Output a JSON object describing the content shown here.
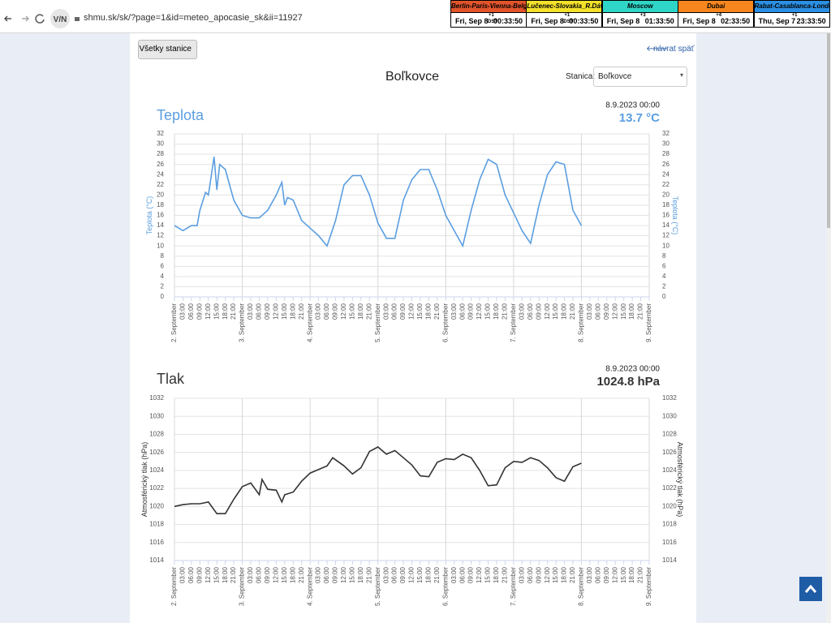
{
  "browser": {
    "url": "shmu.sk/sk/?page=1&id=meteo_apocasie_sk&ii=11927"
  },
  "clocks": [
    {
      "zone": "Berlin-Paris-Vienna-Belgrade",
      "date": "Fri, Sep 8",
      "offset": "+1",
      "dst": "DST",
      "time": "00:33:50",
      "color": "#e2542b"
    },
    {
      "zone": "Lučenec-Slovakia_R.Dávid",
      "date": "Fri, Sep 8",
      "offset": "+1",
      "dst": "DST",
      "time": "00:33:50",
      "color": "#f3e12b"
    },
    {
      "zone": "Moscow",
      "date": "Fri, Sep 8",
      "offset": "+3",
      "time": "01:33:50",
      "color": "#2fd6c8"
    },
    {
      "zone": "Dubai",
      "date": "Fri, Sep 8",
      "offset": "+4",
      "time": "02:33:50",
      "color": "#f7861e"
    },
    {
      "zone": "Rabat-Casablanca-London",
      "date": "Thu, Sep 7",
      "offset": "+1",
      "time": "23:33:50",
      "color": "#2b8fe3"
    }
  ],
  "page": {
    "all_stations_button": "Všetky stanice",
    "back_link": "návrat späť",
    "station_title": "Boľkovce",
    "station_label": "Stanica:",
    "station_select": "Boľkovce"
  },
  "chart_data": [
    {
      "type": "line",
      "title": "Teplota",
      "reading_time": "8.9.2023 00:00",
      "reading": "13.7 °C",
      "y_label": "Teplota (°C)",
      "color": "#5b9ee0",
      "title_color": "#5b9ee0",
      "xlim": [
        0,
        168
      ],
      "ylim": [
        0,
        32
      ],
      "yticks": [
        0,
        2,
        4,
        6,
        8,
        10,
        12,
        14,
        16,
        18,
        20,
        22,
        24,
        26,
        28,
        30,
        32
      ],
      "xticks": [
        {
          "value": 0,
          "label": "2. September"
        },
        {
          "value": 3,
          "label": "03:00"
        },
        {
          "value": 6,
          "label": "06:00"
        },
        {
          "value": 9,
          "label": "09:00"
        },
        {
          "value": 12,
          "label": "12:00"
        },
        {
          "value": 15,
          "label": "15:00"
        },
        {
          "value": 18,
          "label": "18:00"
        },
        {
          "value": 21,
          "label": "21:00"
        },
        {
          "value": 24,
          "label": "3. September"
        },
        {
          "value": 27,
          "label": "03:00"
        },
        {
          "value": 30,
          "label": "06:00"
        },
        {
          "value": 33,
          "label": "09:00"
        },
        {
          "value": 36,
          "label": "12:00"
        },
        {
          "value": 39,
          "label": "15:00"
        },
        {
          "value": 42,
          "label": "18:00"
        },
        {
          "value": 45,
          "label": "21:00"
        },
        {
          "value": 48,
          "label": "4. September"
        },
        {
          "value": 51,
          "label": "03:00"
        },
        {
          "value": 54,
          "label": "06:00"
        },
        {
          "value": 57,
          "label": "09:00"
        },
        {
          "value": 60,
          "label": "12:00"
        },
        {
          "value": 63,
          "label": "15:00"
        },
        {
          "value": 66,
          "label": "18:00"
        },
        {
          "value": 69,
          "label": "21:00"
        },
        {
          "value": 72,
          "label": "5. September"
        },
        {
          "value": 75,
          "label": "03:00"
        },
        {
          "value": 78,
          "label": "06:00"
        },
        {
          "value": 81,
          "label": "09:00"
        },
        {
          "value": 84,
          "label": "12:00"
        },
        {
          "value": 87,
          "label": "15:00"
        },
        {
          "value": 90,
          "label": "18:00"
        },
        {
          "value": 93,
          "label": "21:00"
        },
        {
          "value": 96,
          "label": "6. September"
        },
        {
          "value": 99,
          "label": "03:00"
        },
        {
          "value": 102,
          "label": "06:00"
        },
        {
          "value": 105,
          "label": "09:00"
        },
        {
          "value": 108,
          "label": "12:00"
        },
        {
          "value": 111,
          "label": "15:00"
        },
        {
          "value": 114,
          "label": "18:00"
        },
        {
          "value": 117,
          "label": "21:00"
        },
        {
          "value": 120,
          "label": "7. September"
        },
        {
          "value": 123,
          "label": "03:00"
        },
        {
          "value": 126,
          "label": "06:00"
        },
        {
          "value": 129,
          "label": "09:00"
        },
        {
          "value": 132,
          "label": "12:00"
        },
        {
          "value": 135,
          "label": "15:00"
        },
        {
          "value": 138,
          "label": "18:00"
        },
        {
          "value": 141,
          "label": "21:00"
        },
        {
          "value": 144,
          "label": "8. September"
        },
        {
          "value": 147,
          "label": "03:00"
        },
        {
          "value": 150,
          "label": "06:00"
        },
        {
          "value": 153,
          "label": "09:00"
        },
        {
          "value": 156,
          "label": "12:00"
        },
        {
          "value": 159,
          "label": "15:00"
        },
        {
          "value": 162,
          "label": "18:00"
        },
        {
          "value": 165,
          "label": "21:00"
        },
        {
          "value": 168,
          "label": "9. September"
        }
      ],
      "x": [
        0,
        3,
        6,
        8,
        9,
        11,
        12,
        14,
        15,
        16,
        18,
        21,
        24,
        27,
        30,
        33,
        36,
        38,
        39,
        40,
        42,
        45,
        48,
        51,
        54,
        57,
        60,
        63,
        66,
        69,
        72,
        75,
        78,
        81,
        84,
        87,
        90,
        93,
        96,
        99,
        102,
        105,
        108,
        111,
        114,
        117,
        120,
        123,
        126,
        129,
        132,
        135,
        138,
        141,
        144
      ],
      "values": [
        14,
        13,
        14,
        14,
        17,
        20.5,
        20,
        27.5,
        21,
        26,
        25,
        19,
        16,
        15.5,
        15.5,
        17,
        20,
        22.5,
        18,
        19.5,
        19,
        15,
        13.5,
        12,
        10,
        15,
        22,
        23.8,
        23.8,
        20,
        14.5,
        11.5,
        11.5,
        19,
        23,
        25,
        25,
        21,
        16,
        13,
        10,
        17,
        23,
        27,
        26,
        20,
        16.5,
        13,
        10.5,
        18,
        24,
        26.5,
        26,
        17,
        14
      ]
    },
    {
      "type": "line",
      "title": "Tlak",
      "reading_time": "8.9.2023 00:00",
      "reading": "1024.8 hPa",
      "y_label": "Atmosférický tlak (hPa)",
      "color": "#333333",
      "title_color": "#333333",
      "xlim": [
        0,
        168
      ],
      "ylim": [
        1014,
        1032
      ],
      "yticks": [
        1014,
        1016,
        1018,
        1020,
        1022,
        1024,
        1026,
        1028,
        1030,
        1032
      ],
      "xticks": [
        {
          "value": 0,
          "label": "2. September"
        },
        {
          "value": 3,
          "label": "03:00"
        },
        {
          "value": 6,
          "label": "06:00"
        },
        {
          "value": 9,
          "label": "09:00"
        },
        {
          "value": 12,
          "label": "12:00"
        },
        {
          "value": 15,
          "label": "15:00"
        },
        {
          "value": 18,
          "label": "18:00"
        },
        {
          "value": 21,
          "label": "21:00"
        },
        {
          "value": 24,
          "label": "3. September"
        },
        {
          "value": 27,
          "label": "03:00"
        },
        {
          "value": 30,
          "label": "06:00"
        },
        {
          "value": 33,
          "label": "09:00"
        },
        {
          "value": 36,
          "label": "12:00"
        },
        {
          "value": 39,
          "label": "15:00"
        },
        {
          "value": 42,
          "label": "18:00"
        },
        {
          "value": 45,
          "label": "21:00"
        },
        {
          "value": 48,
          "label": "4. September"
        },
        {
          "value": 51,
          "label": "03:00"
        },
        {
          "value": 54,
          "label": "06:00"
        },
        {
          "value": 57,
          "label": "09:00"
        },
        {
          "value": 60,
          "label": "12:00"
        },
        {
          "value": 63,
          "label": "15:00"
        },
        {
          "value": 66,
          "label": "18:00"
        },
        {
          "value": 69,
          "label": "21:00"
        },
        {
          "value": 72,
          "label": "5. September"
        },
        {
          "value": 75,
          "label": "03:00"
        },
        {
          "value": 78,
          "label": "06:00"
        },
        {
          "value": 81,
          "label": "09:00"
        },
        {
          "value": 84,
          "label": "12:00"
        },
        {
          "value": 87,
          "label": "15:00"
        },
        {
          "value": 90,
          "label": "18:00"
        },
        {
          "value": 93,
          "label": "21:00"
        },
        {
          "value": 96,
          "label": "6. September"
        },
        {
          "value": 99,
          "label": "03:00"
        },
        {
          "value": 102,
          "label": "06:00"
        },
        {
          "value": 105,
          "label": "09:00"
        },
        {
          "value": 108,
          "label": "12:00"
        },
        {
          "value": 111,
          "label": "15:00"
        },
        {
          "value": 114,
          "label": "18:00"
        },
        {
          "value": 117,
          "label": "21:00"
        },
        {
          "value": 120,
          "label": "7. September"
        },
        {
          "value": 123,
          "label": "03:00"
        },
        {
          "value": 126,
          "label": "06:00"
        },
        {
          "value": 129,
          "label": "09:00"
        },
        {
          "value": 132,
          "label": "12:00"
        },
        {
          "value": 135,
          "label": "15:00"
        },
        {
          "value": 138,
          "label": "18:00"
        },
        {
          "value": 141,
          "label": "21:00"
        },
        {
          "value": 144,
          "label": "8. September"
        },
        {
          "value": 147,
          "label": "03:00"
        },
        {
          "value": 150,
          "label": "06:00"
        },
        {
          "value": 153,
          "label": "09:00"
        },
        {
          "value": 156,
          "label": "12:00"
        },
        {
          "value": 159,
          "label": "15:00"
        },
        {
          "value": 162,
          "label": "18:00"
        },
        {
          "value": 165,
          "label": "21:00"
        },
        {
          "value": 168,
          "label": "9. September"
        }
      ],
      "x": [
        0,
        3,
        6,
        9,
        12,
        15,
        18,
        21,
        24,
        27,
        30,
        31,
        33,
        36,
        38,
        39,
        42,
        45,
        48,
        51,
        54,
        56,
        60,
        63,
        66,
        69,
        72,
        75,
        78,
        81,
        84,
        87,
        90,
        93,
        96,
        99,
        102,
        105,
        108,
        111,
        114,
        117,
        120,
        123,
        126,
        129,
        132,
        135,
        138,
        141,
        144
      ],
      "values": [
        1020,
        1020.2,
        1020.3,
        1020.3,
        1020.5,
        1019.2,
        1019.2,
        1020.8,
        1022.2,
        1022.6,
        1021.3,
        1023,
        1021.9,
        1021.8,
        1020.5,
        1021.3,
        1021.6,
        1022.8,
        1023.7,
        1024.1,
        1024.5,
        1025.4,
        1024.5,
        1023.6,
        1024.3,
        1026.1,
        1026.6,
        1025.8,
        1026.2,
        1025.4,
        1024.6,
        1023.4,
        1023.3,
        1024.9,
        1025.3,
        1025.2,
        1025.8,
        1025.4,
        1024,
        1022.3,
        1022.4,
        1024.3,
        1025,
        1024.9,
        1025.4,
        1025.1,
        1024.3,
        1023.2,
        1022.8,
        1024.4,
        1024.8
      ]
    }
  ]
}
